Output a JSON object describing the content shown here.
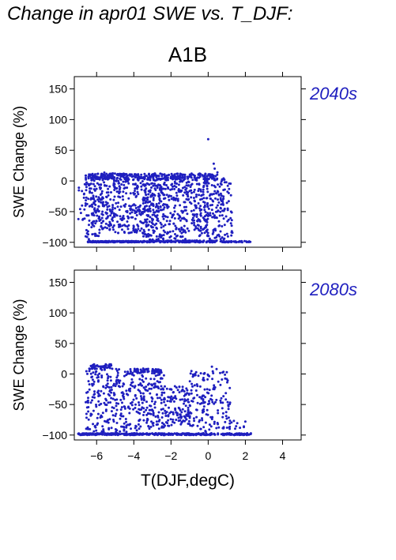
{
  "title": "Change in apr01 SWE vs. T_DJF:",
  "scenario": "A1B",
  "colors": {
    "points": "#1f1fbf",
    "axis": "#000000",
    "period_label": "#1f1fbf"
  },
  "chart_data": [
    {
      "type": "scatter",
      "period": "2040s",
      "ylabel": "SWE Change (%)",
      "xlabel": "",
      "xlim": [
        -7.2,
        5.0
      ],
      "ylim": [
        -108,
        170
      ],
      "xticks": [
        -6,
        -4,
        -2,
        0,
        2,
        4
      ],
      "yticks": [
        150,
        100,
        50,
        0,
        -50,
        -100
      ],
      "ytick_labels": [
        "150",
        "100",
        "50",
        "0",
        "−50",
        "−100"
      ],
      "show_xtick_labels": false,
      "grid": false,
      "point_clusters": [
        {
          "x": [
            -6.5,
            -3.2
          ],
          "y": [
            -100,
            -98
          ],
          "n": 220
        },
        {
          "x": [
            -3.2,
            0.5
          ],
          "y": [
            -100,
            -97
          ],
          "n": 180
        },
        {
          "x": [
            0.8,
            2.3
          ],
          "y": [
            -100,
            -98
          ],
          "n": 40
        },
        {
          "x": [
            -6.6,
            -5.8
          ],
          "y": [
            -95,
            10
          ],
          "n": 110
        },
        {
          "x": [
            -5.8,
            -5.0
          ],
          "y": [
            -80,
            14
          ],
          "n": 120
        },
        {
          "x": [
            -5.0,
            -3.5
          ],
          "y": [
            -85,
            12
          ],
          "n": 170
        },
        {
          "x": [
            -3.5,
            -2.5
          ],
          "y": [
            -100,
            8
          ],
          "n": 200
        },
        {
          "x": [
            -2.5,
            -1.2
          ],
          "y": [
            -95,
            8
          ],
          "n": 170
        },
        {
          "x": [
            -1.2,
            0.0
          ],
          "y": [
            -90,
            6
          ],
          "n": 160
        },
        {
          "x": [
            0.0,
            1.3
          ],
          "y": [
            -100,
            5
          ],
          "n": 140
        },
        {
          "x": [
            -6.6,
            0.5
          ],
          "y": [
            2,
            12
          ],
          "n": 260
        },
        {
          "x": [
            -7.0,
            -6.6
          ],
          "y": [
            -65,
            -5
          ],
          "n": 15
        }
      ],
      "outliers": [
        {
          "x": 0.0,
          "y": 68
        },
        {
          "x": 0.3,
          "y": 28
        },
        {
          "x": 0.35,
          "y": 20
        },
        {
          "x": 0.5,
          "y": 14
        }
      ]
    },
    {
      "type": "scatter",
      "period": "2080s",
      "ylabel": "SWE Change (%)",
      "xlabel": "T(DJF,degC)",
      "xlim": [
        -7.2,
        5.0
      ],
      "ylim": [
        -108,
        170
      ],
      "xticks": [
        -6,
        -4,
        -2,
        0,
        2,
        4
      ],
      "xtick_labels": [
        "−6",
        "−4",
        "−2",
        "0",
        "2",
        "4"
      ],
      "yticks": [
        150,
        100,
        50,
        0,
        -50,
        -100
      ],
      "ytick_labels": [
        "150",
        "100",
        "50",
        "0",
        "−50",
        "−100"
      ],
      "show_xtick_labels": true,
      "grid": false,
      "point_clusters": [
        {
          "x": [
            -7.0,
            -2.0
          ],
          "y": [
            -100,
            -97
          ],
          "n": 220
        },
        {
          "x": [
            -2.0,
            2.3
          ],
          "y": [
            -100,
            -97
          ],
          "n": 160
        },
        {
          "x": [
            -6.6,
            -5.0
          ],
          "y": [
            -98,
            15
          ],
          "n": 150
        },
        {
          "x": [
            -5.0,
            -3.5
          ],
          "y": [
            -95,
            8
          ],
          "n": 150
        },
        {
          "x": [
            -3.5,
            -2.2
          ],
          "y": [
            -90,
            8
          ],
          "n": 140
        },
        {
          "x": [
            -2.2,
            -1.0
          ],
          "y": [
            -85,
            -20
          ],
          "n": 110
        },
        {
          "x": [
            -1.0,
            1.2
          ],
          "y": [
            -95,
            5
          ],
          "n": 160
        },
        {
          "x": [
            -6.5,
            -5.2
          ],
          "y": [
            8,
            16
          ],
          "n": 50
        },
        {
          "x": [
            -4.0,
            -2.5
          ],
          "y": [
            2,
            9
          ],
          "n": 40
        },
        {
          "x": [
            0.8,
            2.0
          ],
          "y": [
            -90,
            -75
          ],
          "n": 12
        }
      ],
      "outliers": [
        {
          "x": 0.2,
          "y": 12
        },
        {
          "x": 0.45,
          "y": 8
        },
        {
          "x": 1.0,
          "y": 3
        },
        {
          "x": 2.0,
          "y": -78
        }
      ]
    }
  ]
}
